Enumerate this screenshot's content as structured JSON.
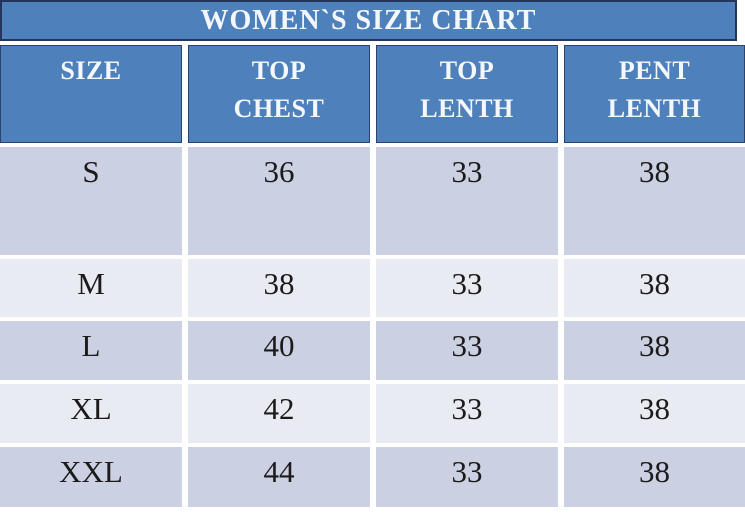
{
  "title": "WOMEN`S SIZE CHART",
  "header": [
    {
      "line1": "SIZE",
      "line2": ""
    },
    {
      "line1": "TOP",
      "line2": "CHEST"
    },
    {
      "line1": "TOP",
      "line2": "LENTH"
    },
    {
      "line1": "PENT",
      "line2": "LENTH"
    }
  ],
  "rows": [
    {
      "size": "S",
      "top_chest": "36",
      "top_lenth": "33",
      "pent_lenth": "38"
    },
    {
      "size": "M",
      "top_chest": "38",
      "top_lenth": "33",
      "pent_lenth": "38"
    },
    {
      "size": "L",
      "top_chest": "40",
      "top_lenth": "33",
      "pent_lenth": "38"
    },
    {
      "size": "XL",
      "top_chest": "42",
      "top_lenth": "33",
      "pent_lenth": "38"
    },
    {
      "size": "XXL",
      "top_chest": "44",
      "top_lenth": "33",
      "pent_lenth": "38"
    }
  ],
  "colors": {
    "header_blue": "#4E81BC",
    "border_dark": "#2C436E",
    "row_dark": "#CBD1E2",
    "row_light": "#E9EBF3",
    "gridline_white": "#FFFFFF",
    "header_text": "#F4F8FC",
    "data_text": "#1B1B1B"
  },
  "chart_data": {
    "type": "table",
    "title": "WOMEN`S SIZE CHART",
    "columns": [
      "SIZE",
      "TOP CHEST",
      "TOP LENTH",
      "PENT LENTH"
    ],
    "rows": [
      [
        "S",
        36,
        33,
        38
      ],
      [
        "M",
        38,
        33,
        38
      ],
      [
        "L",
        40,
        33,
        38
      ],
      [
        "XL",
        42,
        33,
        38
      ],
      [
        "XXL",
        44,
        33,
        38
      ]
    ]
  }
}
